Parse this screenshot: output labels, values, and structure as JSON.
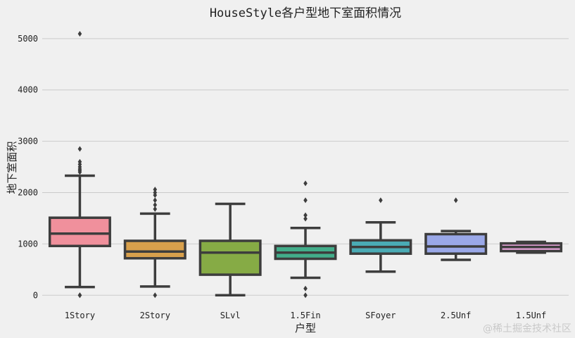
{
  "chart_data": {
    "type": "box",
    "title": "HouseStyle各户型地下室面积情况",
    "xlabel": "户型",
    "ylabel": "地下室面积",
    "ylim": [
      -120,
      5300
    ],
    "yticks": [
      0,
      1000,
      2000,
      3000,
      4000,
      5000
    ],
    "grid": true,
    "categories": [
      "1Story",
      "2Story",
      "SLvl",
      "1.5Fin",
      "SFoyer",
      "2.5Unf",
      "1.5Unf"
    ],
    "boxes": [
      {
        "category": "1Story",
        "color": "#f0909c",
        "whisker_low": 160,
        "q1": 960,
        "median": 1200,
        "q3": 1510,
        "whisker_high": 2330,
        "fliers": [
          0,
          0,
          2400,
          2430,
          2460,
          2500,
          2550,
          2600,
          2850,
          5095
        ]
      },
      {
        "category": "2Story",
        "color": "#d8a04c",
        "whisker_low": 170,
        "q1": 720,
        "median": 850,
        "q3": 1060,
        "whisker_high": 1590,
        "fliers": [
          0,
          1680,
          1760,
          1850,
          1950,
          2000,
          2060
        ]
      },
      {
        "category": "SLvl",
        "color": "#86ab45",
        "whisker_low": 0,
        "q1": 400,
        "median": 830,
        "q3": 1060,
        "whisker_high": 1780,
        "fliers": []
      },
      {
        "category": "1.5Fin",
        "color": "#42ad8a",
        "whisker_low": 340,
        "q1": 710,
        "median": 830,
        "q3": 960,
        "whisker_high": 1310,
        "fliers": [
          0,
          130,
          1490,
          1560,
          1850,
          2180
        ]
      },
      {
        "category": "SFoyer",
        "color": "#4aabb5",
        "whisker_low": 460,
        "q1": 810,
        "median": 940,
        "q3": 1070,
        "whisker_high": 1420,
        "fliers": [
          1850
        ]
      },
      {
        "category": "2.5Unf",
        "color": "#9aa8e8",
        "whisker_low": 690,
        "q1": 810,
        "median": 950,
        "q3": 1190,
        "whisker_high": 1250,
        "fliers": [
          1850
        ]
      },
      {
        "category": "1.5Unf",
        "color": "#e3a1d6",
        "whisker_low": 830,
        "q1": 860,
        "median": 940,
        "q3": 1010,
        "whisker_high": 1040,
        "fliers": []
      }
    ]
  },
  "watermark": "@稀土掘金技术社区"
}
